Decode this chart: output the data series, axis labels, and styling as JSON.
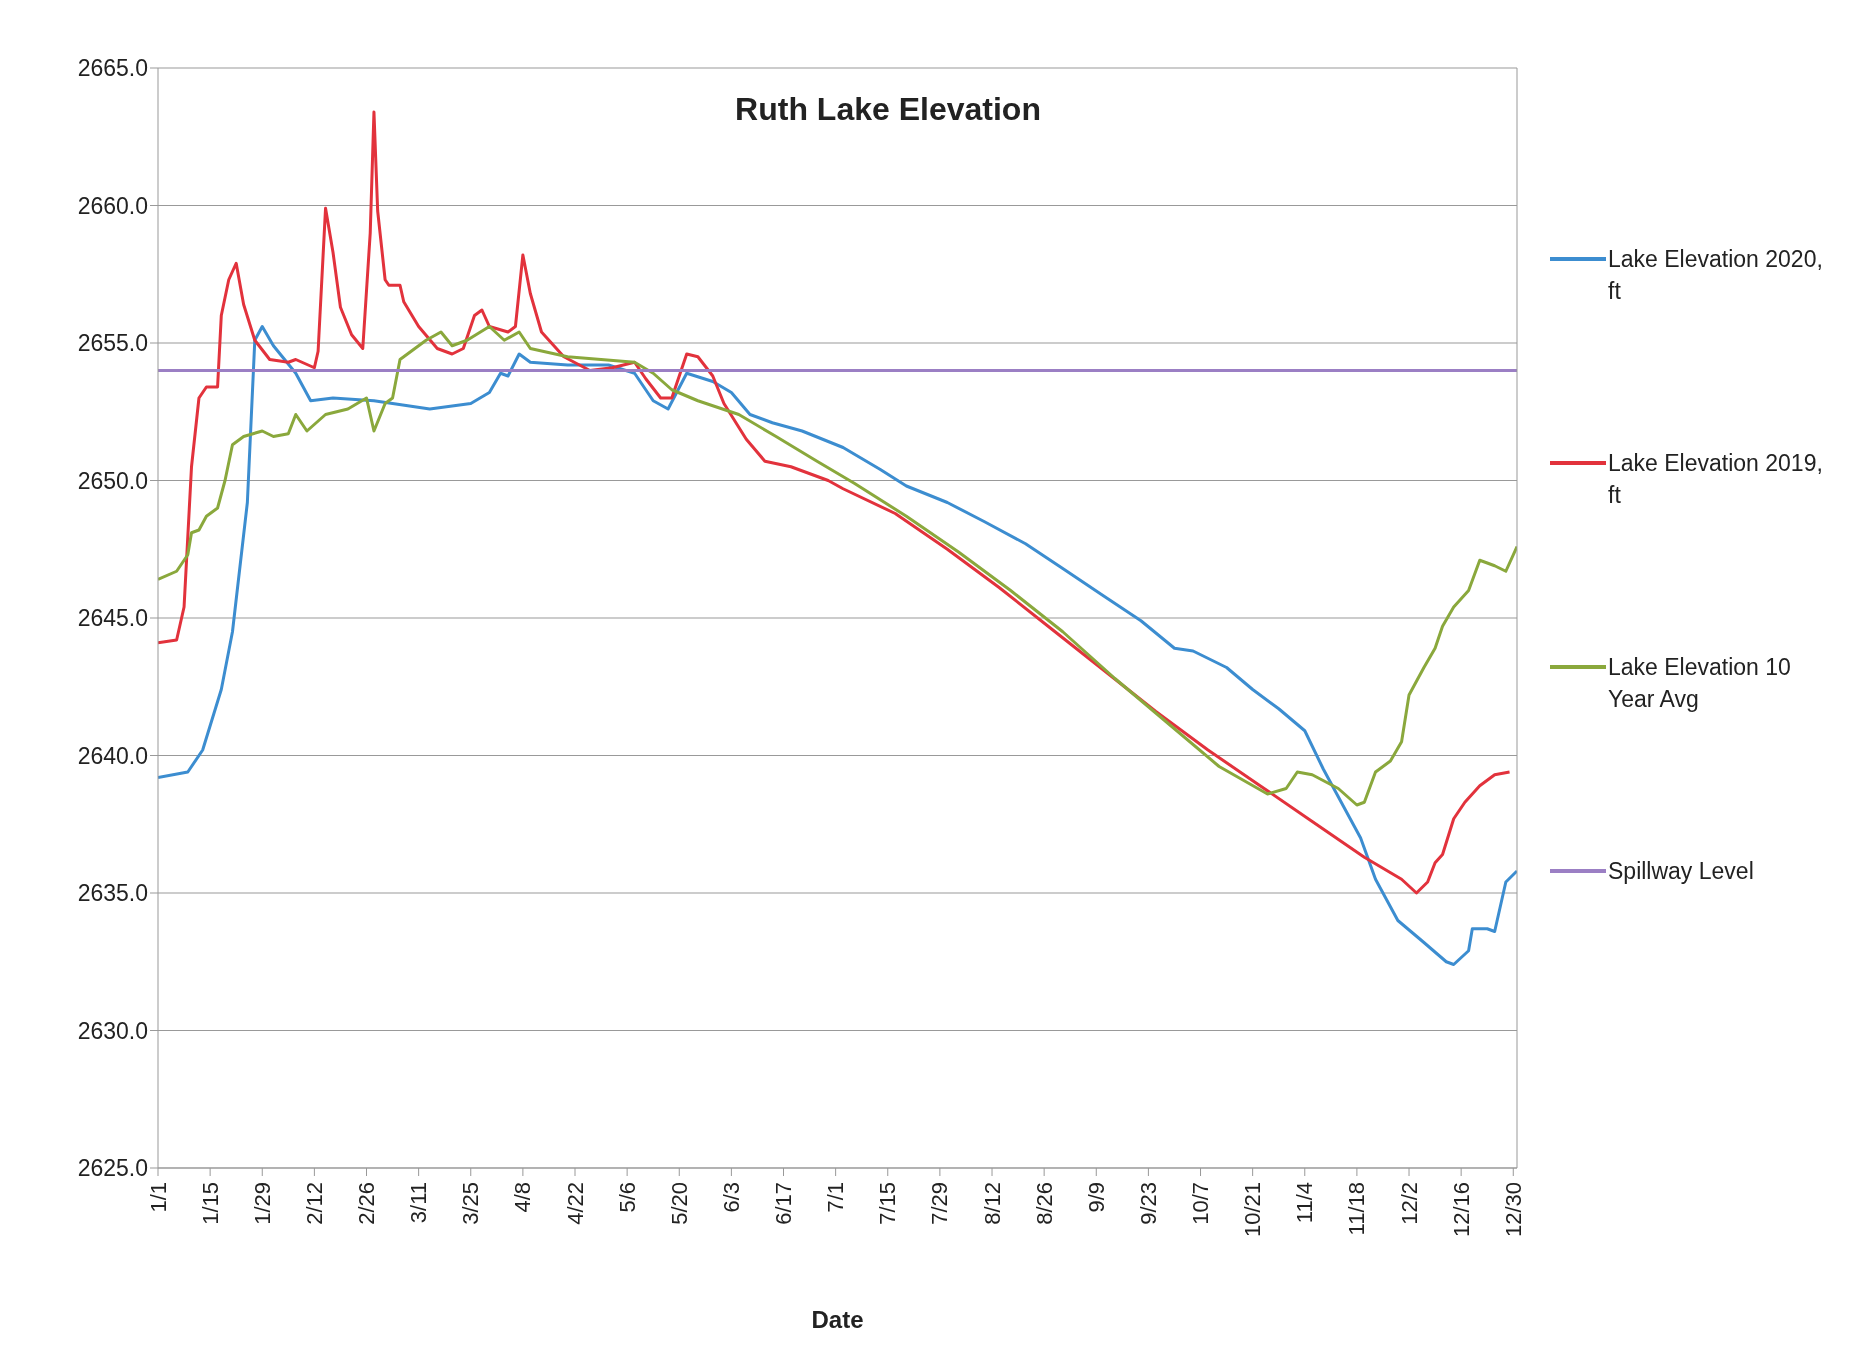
{
  "chart_data": {
    "type": "line",
    "title": "Ruth Lake Elevation",
    "xlabel": "Date",
    "xlim": [
      "--01-01",
      "--12-31"
    ],
    "xticks": [
      {
        "value": "--01-01",
        "label": "1/1"
      },
      {
        "value": "--01-15",
        "label": "1/15"
      },
      {
        "value": "--01-29",
        "label": "1/29"
      },
      {
        "value": "--02-12",
        "label": "2/12"
      },
      {
        "value": "--02-26",
        "label": "2/26"
      },
      {
        "value": "--03-11",
        "label": "3/11"
      },
      {
        "value": "--03-25",
        "label": "3/25"
      },
      {
        "value": "--04-08",
        "label": "4/8"
      },
      {
        "value": "--04-22",
        "label": "4/22"
      },
      {
        "value": "--05-06",
        "label": "5/6"
      },
      {
        "value": "--05-20",
        "label": "5/20"
      },
      {
        "value": "--06-03",
        "label": "6/3"
      },
      {
        "value": "--06-17",
        "label": "6/17"
      },
      {
        "value": "--07-01",
        "label": "7/1"
      },
      {
        "value": "--07-15",
        "label": "7/15"
      },
      {
        "value": "--07-29",
        "label": "7/29"
      },
      {
        "value": "--08-12",
        "label": "8/12"
      },
      {
        "value": "--08-26",
        "label": "8/26"
      },
      {
        "value": "--09-09",
        "label": "9/9"
      },
      {
        "value": "--09-23",
        "label": "9/23"
      },
      {
        "value": "--10-07",
        "label": "10/7"
      },
      {
        "value": "--10-21",
        "label": "10/21"
      },
      {
        "value": "--11-04",
        "label": "11/4"
      },
      {
        "value": "--11-18",
        "label": "11/18"
      },
      {
        "value": "--12-02",
        "label": "12/2"
      },
      {
        "value": "--12-16",
        "label": "12/16"
      },
      {
        "value": "--12-30",
        "label": "12/30"
      }
    ],
    "ylim": [
      2625,
      2665
    ],
    "yticks": [
      {
        "value": 2625,
        "label": "2625.0"
      },
      {
        "value": 2630,
        "label": "2630.0"
      },
      {
        "value": 2635,
        "label": "2635.0"
      },
      {
        "value": 2640,
        "label": "2640.0"
      },
      {
        "value": 2645,
        "label": "2645.0"
      },
      {
        "value": 2650,
        "label": "2650.0"
      },
      {
        "value": 2655,
        "label": "2655.0"
      },
      {
        "value": 2660,
        "label": "2660.0"
      },
      {
        "value": 2665,
        "label": "2665.0"
      }
    ],
    "grid": "y",
    "legend": "right",
    "marker": "none",
    "line_style": "solid",
    "series": [
      {
        "name": "Lake Elevation 2020, ft",
        "color": "#3c8dd0",
        "x": [
          "--01-01",
          "--01-09",
          "--01-13",
          "--01-18",
          "--01-21",
          "--01-25",
          "--01-27",
          "--01-29",
          "--02-01",
          "--02-07",
          "--02-11",
          "--02-17",
          "--02-28",
          "--03-14",
          "--03-25",
          "--03-30",
          "--04-02",
          "--04-04",
          "--04-07",
          "--04-10",
          "--04-20",
          "--05-01",
          "--05-08",
          "--05-13",
          "--05-17",
          "--05-22",
          "--05-29",
          "--06-03",
          "--06-08",
          "--06-14",
          "--06-22",
          "--07-03",
          "--07-13",
          "--07-20",
          "--07-31",
          "--08-10",
          "--08-21",
          "--08-31",
          "--09-11",
          "--09-21",
          "--09-30",
          "--10-05",
          "--10-14",
          "--10-21",
          "--10-28",
          "--11-04",
          "--11-09",
          "--11-15",
          "--11-19",
          "--11-23",
          "--11-29",
          "--12-06",
          "--12-12",
          "--12-14",
          "--12-18",
          "--12-19",
          "--12-23",
          "--12-25",
          "--12-28",
          "--12-31"
        ],
        "values": [
          2639.2,
          2639.4,
          2640.2,
          2642.4,
          2644.5,
          2649.2,
          2655.1,
          2655.6,
          2654.9,
          2653.9,
          2652.9,
          2653.0,
          2652.9,
          2652.6,
          2652.8,
          2653.2,
          2653.9,
          2653.8,
          2654.6,
          2654.3,
          2654.2,
          2654.2,
          2653.9,
          2652.9,
          2652.6,
          2653.9,
          2653.6,
          2653.2,
          2652.4,
          2652.1,
          2651.8,
          2651.2,
          2650.4,
          2649.8,
          2649.2,
          2648.5,
          2647.7,
          2646.8,
          2645.8,
          2644.9,
          2643.9,
          2643.8,
          2643.2,
          2642.4,
          2641.7,
          2640.9,
          2639.5,
          2638.0,
          2637.0,
          2635.5,
          2634.0,
          2633.2,
          2632.5,
          2632.4,
          2632.9,
          2633.7,
          2633.7,
          2633.6,
          2635.4,
          2635.8
        ]
      },
      {
        "name": "Lake Elevation 2019, ft",
        "color": "#e2323c",
        "x": [
          "--01-01",
          "--01-06",
          "--01-08",
          "--01-10",
          "--01-12",
          "--01-14",
          "--01-17",
          "--01-18",
          "--01-20",
          "--01-22",
          "--01-24",
          "--01-27",
          "--01-31",
          "--02-05",
          "--02-07",
          "--02-12",
          "--02-13",
          "--02-15",
          "--02-17",
          "--02-19",
          "--02-22",
          "--02-25",
          "--02-27",
          "--02-28",
          "--02-29",
          "--03-02",
          "--03-03",
          "--03-06",
          "--03-07",
          "--03-11",
          "--03-16",
          "--03-20",
          "--03-23",
          "--03-26",
          "--03-28",
          "--03-30",
          "--04-04",
          "--04-06",
          "--04-08",
          "--04-10",
          "--04-13",
          "--04-19",
          "--04-26",
          "--05-02",
          "--05-08",
          "--05-11",
          "--05-15",
          "--05-18",
          "--05-22",
          "--05-25",
          "--05-29",
          "--06-01",
          "--06-07",
          "--06-12",
          "--06-19",
          "--06-29",
          "--07-03",
          "--07-17",
          "--07-31",
          "--08-14",
          "--08-28",
          "--09-11",
          "--09-25",
          "--10-09",
          "--10-23",
          "--11-06",
          "--11-20",
          "--11-30",
          "--12-04",
          "--12-07",
          "--12-09",
          "--12-11",
          "--12-14",
          "--12-17",
          "--12-21",
          "--12-25",
          "--12-29"
        ],
        "values": [
          2644.1,
          2644.2,
          2645.4,
          2650.5,
          2653.0,
          2653.4,
          2653.4,
          2656.0,
          2657.3,
          2657.9,
          2656.4,
          2655.1,
          2654.4,
          2654.3,
          2654.4,
          2654.1,
          2654.7,
          2659.9,
          2658.3,
          2656.3,
          2655.3,
          2654.8,
          2659.0,
          2663.4,
          2659.8,
          2657.3,
          2657.1,
          2657.1,
          2656.5,
          2655.6,
          2654.8,
          2654.6,
          2654.8,
          2656.0,
          2656.2,
          2655.6,
          2655.4,
          2655.6,
          2658.2,
          2656.8,
          2655.4,
          2654.5,
          2654.0,
          2654.1,
          2654.3,
          2653.7,
          2653.0,
          2653.0,
          2654.6,
          2654.5,
          2653.8,
          2652.8,
          2651.5,
          2650.7,
          2650.5,
          2650.0,
          2649.7,
          2648.8,
          2647.5,
          2646.1,
          2644.6,
          2643.1,
          2641.6,
          2640.2,
          2638.9,
          2637.6,
          2636.3,
          2635.5,
          2635.0,
          2635.4,
          2636.1,
          2636.4,
          2637.7,
          2638.3,
          2638.9,
          2639.3,
          2639.4
        ]
      },
      {
        "name": "Lake Elevation 10 Year Avg",
        "color": "#8aa83c",
        "x": [
          "--01-01",
          "--01-06",
          "--01-09",
          "--01-10",
          "--01-12",
          "--01-14",
          "--01-17",
          "--01-19",
          "--01-21",
          "--01-24",
          "--01-29",
          "--02-01",
          "--02-05",
          "--02-07",
          "--02-10",
          "--02-15",
          "--02-21",
          "--02-26",
          "--02-28",
          "--03-02",
          "--03-04",
          "--03-06",
          "--03-09",
          "--03-13",
          "--03-17",
          "--03-20",
          "--03-24",
          "--03-30",
          "--04-03",
          "--04-07",
          "--04-10",
          "--04-20",
          "--04-29",
          "--05-08",
          "--05-13",
          "--05-18",
          "--05-25",
          "--06-05",
          "--06-15",
          "--06-26",
          "--07-06",
          "--07-20",
          "--08-03",
          "--08-17",
          "--08-31",
          "--09-14",
          "--09-28",
          "--10-12",
          "--10-25",
          "--10-30",
          "--11-02",
          "--11-06",
          "--11-13",
          "--11-18",
          "--11-20",
          "--11-23",
          "--11-27",
          "--11-30",
          "--12-02",
          "--12-06",
          "--12-09",
          "--12-11",
          "--12-14",
          "--12-18",
          "--12-21",
          "--12-25",
          "--12-28",
          "--12-31"
        ],
        "values": [
          2646.4,
          2646.7,
          2647.3,
          2648.1,
          2648.2,
          2648.7,
          2649.0,
          2650.0,
          2651.3,
          2651.6,
          2651.8,
          2651.6,
          2651.7,
          2652.4,
          2651.8,
          2652.4,
          2652.6,
          2653.0,
          2651.8,
          2652.8,
          2653.0,
          2654.4,
          2654.7,
          2655.1,
          2655.4,
          2654.9,
          2655.1,
          2655.6,
          2655.1,
          2655.4,
          2654.8,
          2654.5,
          2654.4,
          2654.3,
          2653.9,
          2653.3,
          2652.9,
          2652.4,
          2651.6,
          2650.7,
          2649.9,
          2648.7,
          2647.4,
          2646.0,
          2644.5,
          2642.8,
          2641.2,
          2639.6,
          2638.6,
          2638.8,
          2639.4,
          2639.3,
          2638.8,
          2638.2,
          2638.3,
          2639.4,
          2639.8,
          2640.5,
          2642.2,
          2643.2,
          2643.9,
          2644.7,
          2645.4,
          2646.0,
          2647.1,
          2646.9,
          2646.7,
          2647.6
        ]
      },
      {
        "name": "Spillway Level",
        "color": "#9b7fc4",
        "x": [
          "--01-01",
          "--12-31"
        ],
        "values": [
          2654.0,
          2654.0
        ]
      }
    ]
  }
}
